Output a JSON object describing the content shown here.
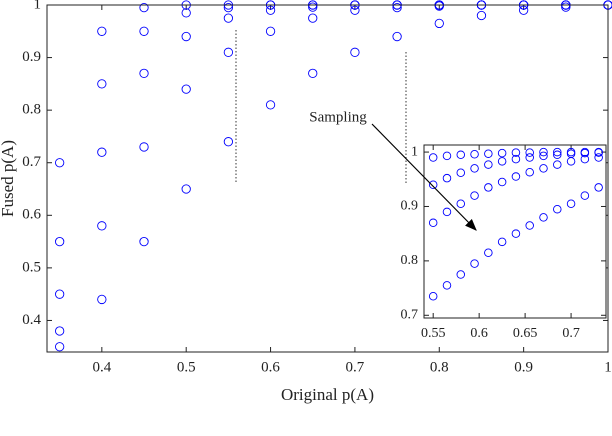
{
  "chart_data": [
    {
      "type": "scatter",
      "xlabel": "Original p(A)",
      "ylabel": "Fused p(A)",
      "annotation": "Sampling",
      "x": [
        0.35,
        0.4,
        0.45,
        0.5,
        0.55,
        0.6,
        0.65,
        0.7,
        0.75,
        0.8,
        0.85,
        0.9,
        0.95,
        1
      ],
      "series": [
        {
          "color": "#0000ff",
          "values": [
            0.35,
            0.44,
            0.55,
            0.65,
            0.74,
            0.81,
            0.87,
            0.91,
            0.94,
            0.965,
            0.98,
            0.99,
            0.996,
            1
          ]
        },
        {
          "color": "#0000ff",
          "values": [
            0.38,
            0.58,
            0.73,
            0.84,
            0.91,
            0.95,
            0.975,
            0.99,
            0.995,
            0.998,
            1,
            1,
            1,
            1
          ]
        },
        {
          "color": "#0000ff",
          "values": [
            0.45,
            0.72,
            0.87,
            0.94,
            0.975,
            0.99,
            0.996,
            1,
            1,
            1,
            1,
            1,
            1,
            1
          ]
        },
        {
          "color": "#0000ff",
          "values": [
            0.55,
            0.85,
            0.95,
            0.985,
            0.995,
            1,
            1,
            1,
            1,
            1,
            1,
            1,
            1,
            1
          ]
        },
        {
          "color": "#0000ff",
          "values": [
            0.7,
            0.95,
            0.995,
            1,
            1,
            1,
            1,
            1,
            1,
            1,
            1,
            1,
            1,
            1
          ]
        }
      ],
      "xlim": [
        0.335,
        1
      ],
      "ylim": [
        0.34,
        1
      ],
      "xticks": [
        0.4,
        0.5,
        0.6,
        0.7,
        0.8,
        0.9,
        1
      ],
      "yticks": [
        0.4,
        0.5,
        0.6,
        0.7,
        0.8,
        0.9,
        1
      ]
    },
    {
      "type": "scatter",
      "x": [
        0.55,
        0.565,
        0.58,
        0.595,
        0.61,
        0.625,
        0.64,
        0.655,
        0.67,
        0.685,
        0.7,
        0.715,
        0.73
      ],
      "series": [
        {
          "color": "#0000ff",
          "values": [
            0.735,
            0.755,
            0.775,
            0.795,
            0.815,
            0.835,
            0.85,
            0.865,
            0.88,
            0.895,
            0.905,
            0.92,
            0.935
          ]
        },
        {
          "color": "#0000ff",
          "values": [
            0.87,
            0.89,
            0.905,
            0.92,
            0.935,
            0.945,
            0.955,
            0.963,
            0.97,
            0.977,
            0.983,
            0.987,
            0.99
          ]
        },
        {
          "color": "#0000ff",
          "values": [
            0.94,
            0.952,
            0.962,
            0.97,
            0.977,
            0.983,
            0.987,
            0.99,
            0.993,
            0.995,
            0.997,
            0.998,
            0.999
          ]
        },
        {
          "color": "#0000ff",
          "values": [
            0.99,
            0.993,
            0.995,
            0.996,
            0.997,
            0.998,
            0.999,
            0.999,
            1,
            1,
            1,
            1,
            1
          ]
        }
      ],
      "xlim": [
        0.54,
        0.738
      ],
      "ylim": [
        0.695,
        1.013
      ],
      "xticks": [
        0.55,
        0.6,
        0.65,
        0.7
      ],
      "yticks": [
        0.7,
        0.8,
        0.9,
        1
      ]
    }
  ]
}
